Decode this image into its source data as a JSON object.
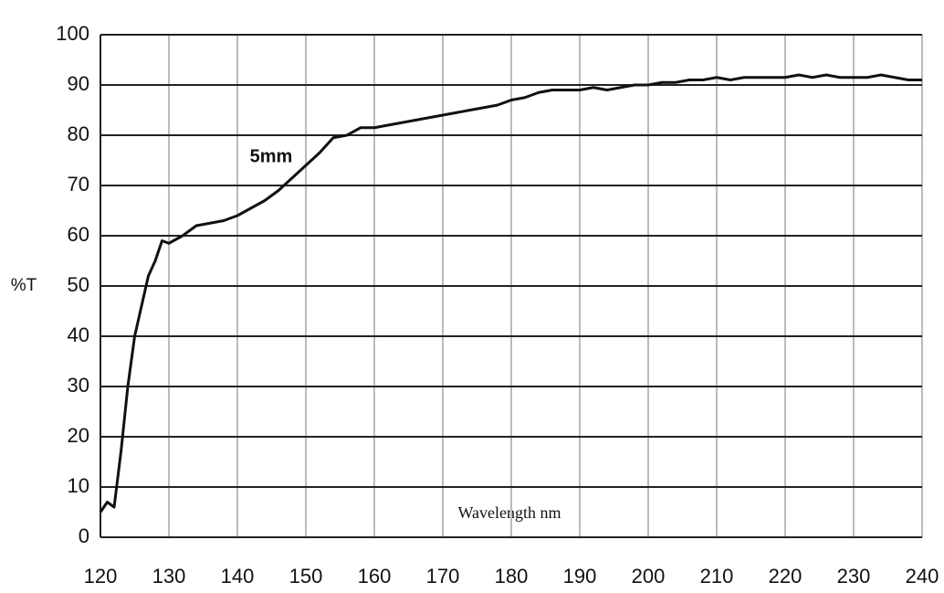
{
  "chart_data": {
    "type": "line",
    "x_label": "Wavelength nm",
    "y_label": "%T",
    "x": [
      120,
      121,
      122,
      123,
      124,
      125,
      126,
      127,
      128,
      129,
      130,
      132,
      134,
      136,
      138,
      140,
      142,
      144,
      146,
      148,
      150,
      152,
      154,
      156,
      158,
      160,
      162,
      164,
      166,
      168,
      170,
      172,
      174,
      176,
      178,
      180,
      182,
      184,
      186,
      188,
      190,
      192,
      194,
      196,
      198,
      200,
      202,
      204,
      206,
      208,
      210,
      212,
      214,
      216,
      218,
      220,
      222,
      224,
      226,
      228,
      230,
      232,
      234,
      236,
      238,
      240
    ],
    "series": [
      {
        "name": "5mm",
        "color": "#111111",
        "values": [
          5,
          7,
          6,
          17,
          30,
          40,
          46,
          52,
          55,
          59,
          58.5,
          60,
          62,
          62.5,
          63,
          64,
          65.5,
          67,
          69,
          71.5,
          74,
          76.5,
          79.5,
          80,
          81.5,
          81.5,
          82,
          82.5,
          83,
          83.5,
          84,
          84.5,
          85,
          85.5,
          86,
          87,
          87.5,
          88.5,
          89,
          89,
          89,
          89.5,
          89,
          89.5,
          90,
          90,
          90.5,
          90.5,
          91,
          91,
          91.5,
          91,
          91.5,
          91.5,
          91.5,
          91.5,
          92,
          91.5,
          92,
          91.5,
          91.5,
          91.5,
          92,
          91.5,
          91,
          91
        ]
      }
    ],
    "xlim": [
      120,
      240
    ],
    "ylim": [
      0,
      100
    ],
    "xticks": [
      120,
      130,
      140,
      150,
      160,
      170,
      180,
      190,
      200,
      210,
      220,
      230,
      240
    ],
    "yticks": [
      0,
      10,
      20,
      30,
      40,
      50,
      60,
      70,
      80,
      90,
      100
    ],
    "grid": true
  }
}
